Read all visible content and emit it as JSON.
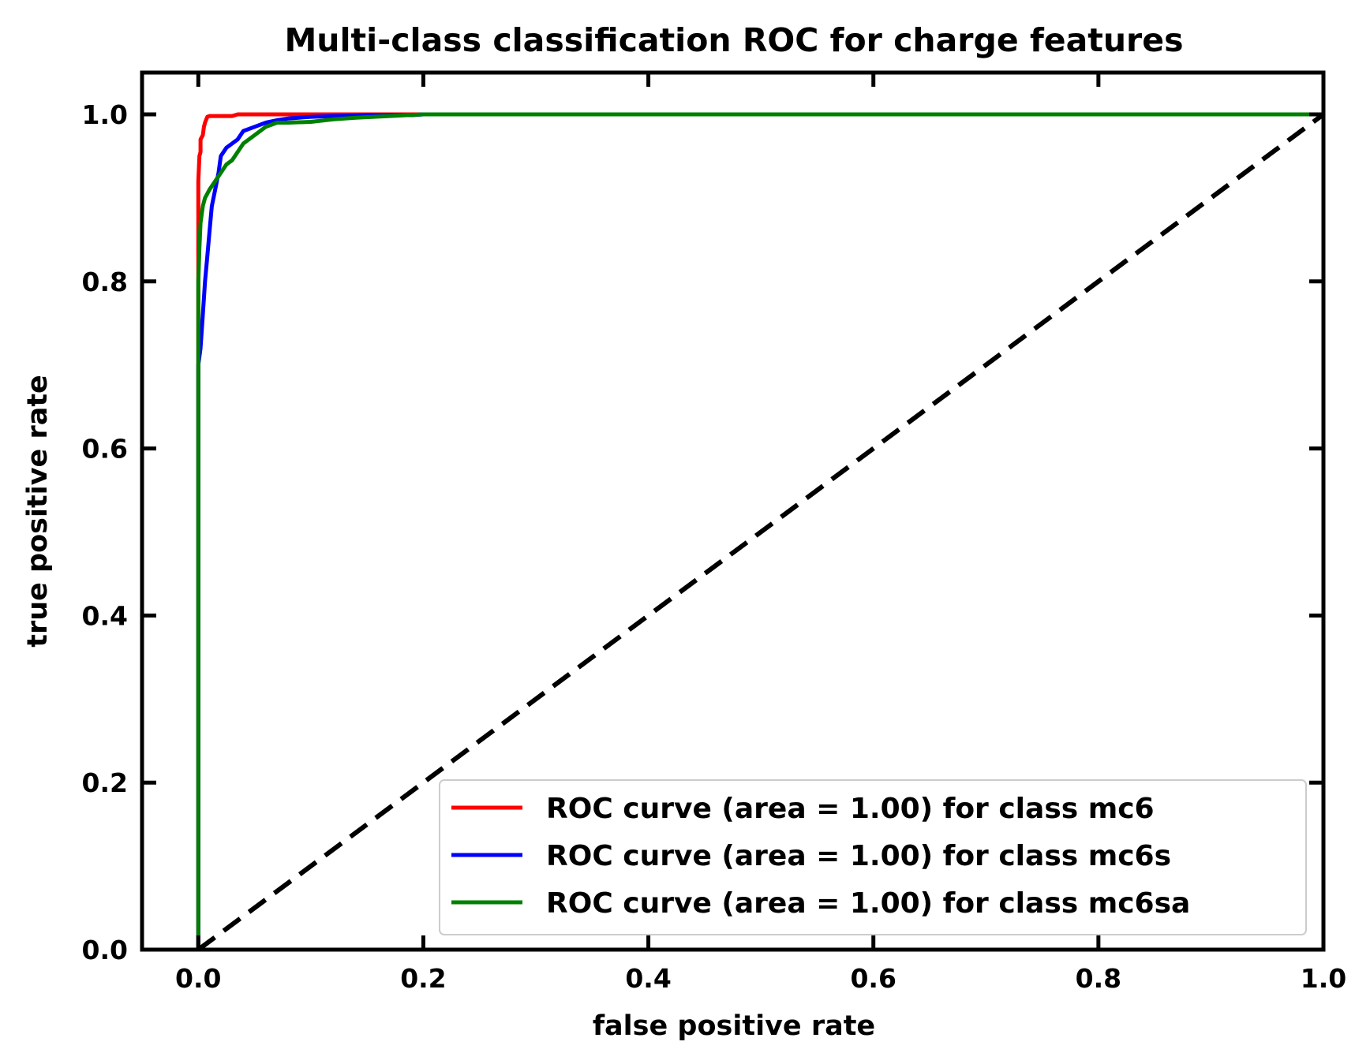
{
  "chart_data": {
    "type": "line",
    "title": "Multi-class classification ROC for charge features",
    "xlabel": "false positive rate",
    "ylabel": "true positive rate",
    "xlim": [
      -0.05,
      1.0
    ],
    "ylim": [
      0.0,
      1.05
    ],
    "xticks": [
      "0.0",
      "0.2",
      "0.4",
      "0.6",
      "0.8",
      "1.0"
    ],
    "yticks": [
      "0.0",
      "0.2",
      "0.4",
      "0.6",
      "0.8",
      "1.0"
    ],
    "grid": false,
    "legend_position": "lower-right",
    "series": [
      {
        "name": "ROC curve (area = 1.00) for class mc6",
        "color": "#ff0000",
        "x": [
          0.0,
          0.0,
          0.0,
          0.001,
          0.002,
          0.002,
          0.004,
          0.005,
          0.006,
          0.008,
          0.01,
          0.03,
          0.035,
          0.04,
          0.1,
          0.2,
          1.0
        ],
        "y": [
          0.0,
          0.85,
          0.92,
          0.95,
          0.955,
          0.97,
          0.975,
          0.985,
          0.99,
          0.997,
          0.998,
          0.998,
          1.0,
          1.0,
          1.0,
          1.0,
          1.0
        ]
      },
      {
        "name": "ROC curve (area = 1.00) for class mc6s",
        "color": "#0000ff",
        "x": [
          0.0,
          0.0,
          0.002,
          0.004,
          0.006,
          0.008,
          0.01,
          0.012,
          0.015,
          0.018,
          0.02,
          0.025,
          0.028,
          0.03,
          0.035,
          0.04,
          0.05,
          0.06,
          0.07,
          0.08,
          0.1,
          0.12,
          0.15,
          0.19,
          0.2,
          1.0
        ],
        "y": [
          0.0,
          0.7,
          0.72,
          0.76,
          0.8,
          0.83,
          0.86,
          0.89,
          0.91,
          0.93,
          0.95,
          0.96,
          0.963,
          0.965,
          0.97,
          0.98,
          0.985,
          0.99,
          0.993,
          0.995,
          0.997,
          0.998,
          0.999,
          0.999,
          1.0,
          1.0
        ]
      },
      {
        "name": "ROC curve (area = 1.00) for class mc6sa",
        "color": "#008000",
        "x": [
          0.0,
          0.0,
          0.0,
          0.001,
          0.002,
          0.004,
          0.006,
          0.008,
          0.01,
          0.015,
          0.02,
          0.025,
          0.03,
          0.035,
          0.04,
          0.05,
          0.06,
          0.07,
          0.08,
          0.1,
          0.12,
          0.14,
          0.17,
          0.2,
          1.0
        ],
        "y": [
          0.0,
          0.6,
          0.8,
          0.84,
          0.87,
          0.89,
          0.9,
          0.905,
          0.91,
          0.92,
          0.93,
          0.94,
          0.945,
          0.955,
          0.965,
          0.975,
          0.985,
          0.99,
          0.99,
          0.991,
          0.994,
          0.996,
          0.998,
          1.0,
          1.0
        ]
      },
      {
        "name": "",
        "color": "#000000",
        "dashed": true,
        "x": [
          0.0,
          1.0
        ],
        "y": [
          0.0,
          1.0
        ]
      }
    ]
  }
}
